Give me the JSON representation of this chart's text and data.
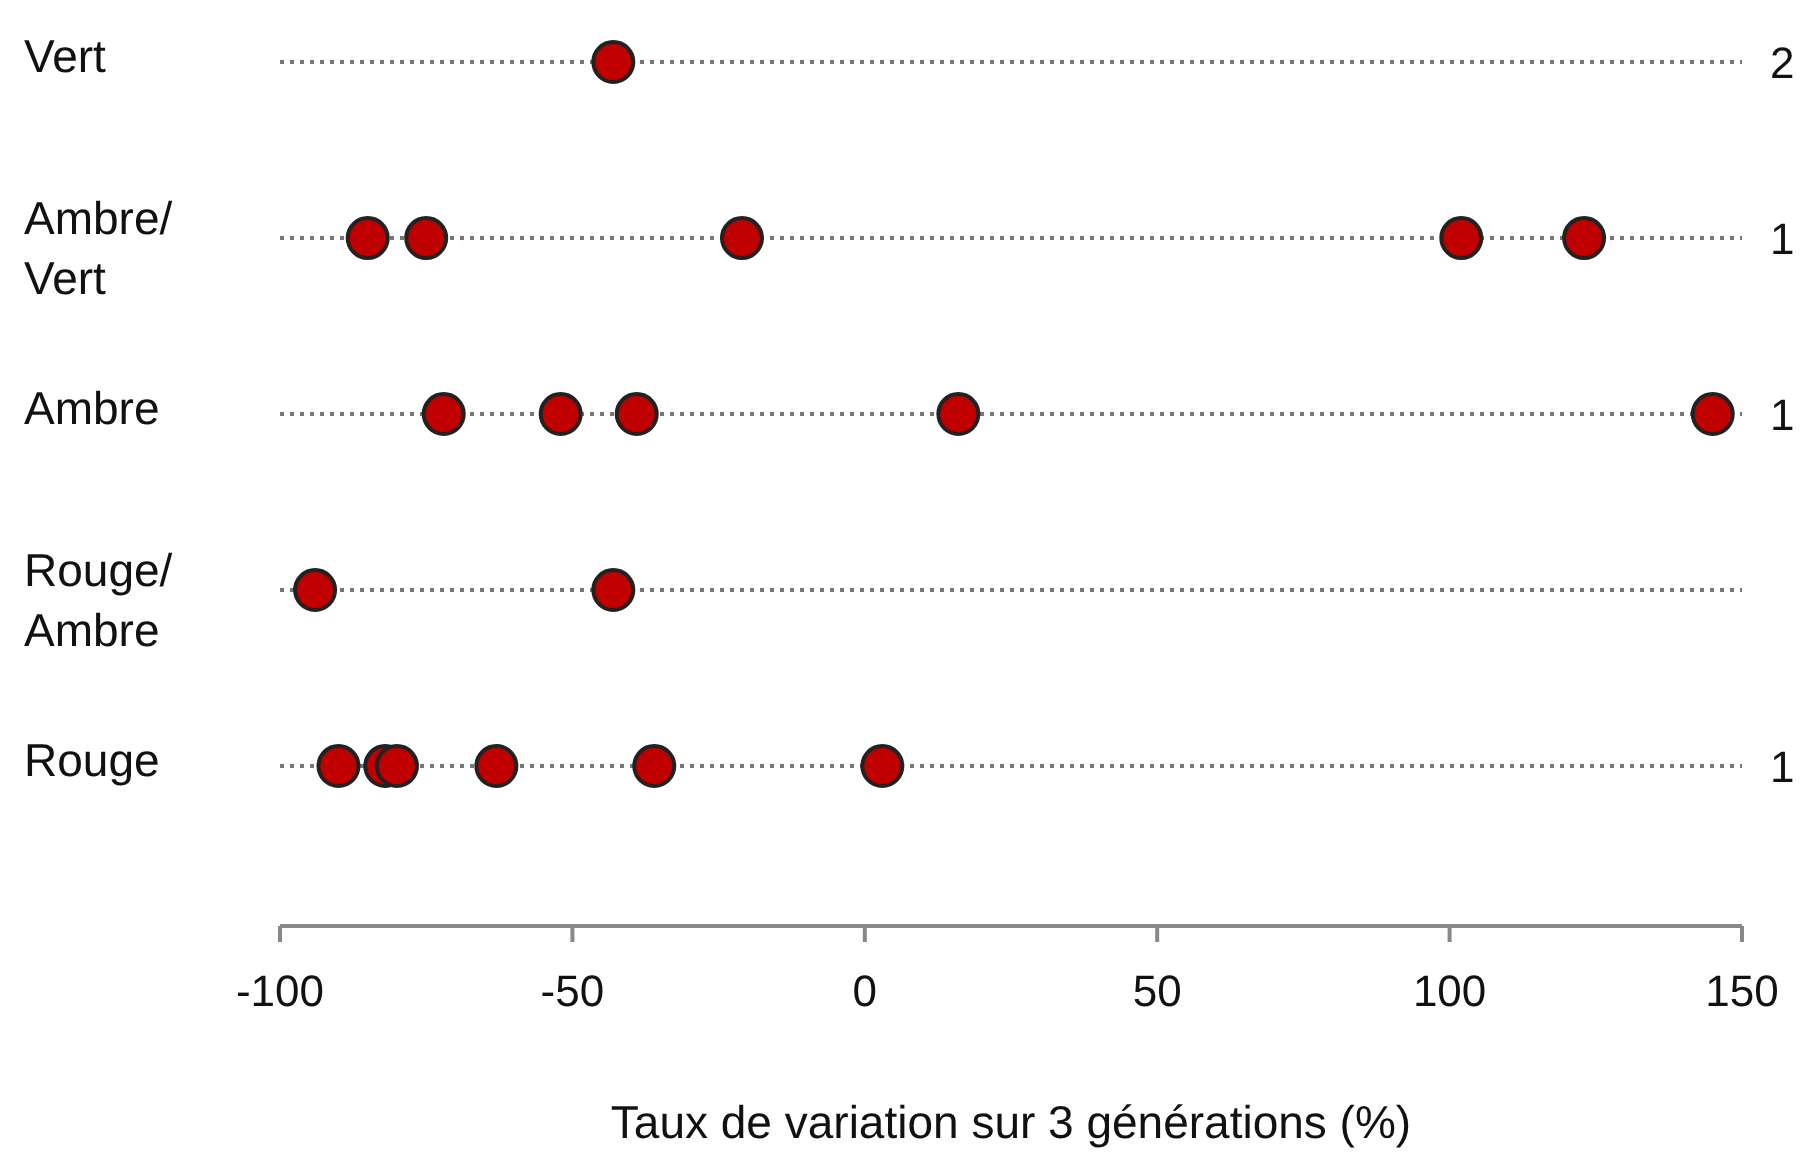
{
  "chart_data": {
    "type": "scatter",
    "orientation": "horizontal",
    "xlabel": "Taux de variation sur 3 générations (%)",
    "categories": [
      "Vert",
      "Ambre/Vert",
      "Ambre",
      "Rouge/Ambre",
      "Rouge"
    ],
    "xlim": [
      -100,
      150
    ],
    "xticks": [
      -100,
      -50,
      0,
      50,
      100,
      150
    ],
    "grid": "y",
    "line_style": "dotted",
    "marker": "circle",
    "series": [
      {
        "color": "#c00000",
        "x": [
          "Vert",
          "Ambre/Vert",
          "Ambre/Vert",
          "Ambre/Vert",
          "Ambre/Vert",
          "Ambre/Vert",
          "Ambre",
          "Ambre",
          "Ambre",
          "Ambre",
          "Ambre",
          "Rouge/Ambre",
          "Rouge/Ambre",
          "Rouge",
          "Rouge",
          "Rouge",
          "Rouge",
          "Rouge",
          "Rouge"
        ],
        "values": [
          -43,
          -85,
          -75,
          -21,
          102,
          123,
          -72,
          -52,
          -39,
          16,
          145,
          -94,
          -43,
          -90,
          -82,
          -80,
          -63,
          -36,
          3
        ]
      }
    ],
    "y2_categories": [
      "2",
      "1",
      "1",
      null,
      "1"
    ]
  }
}
